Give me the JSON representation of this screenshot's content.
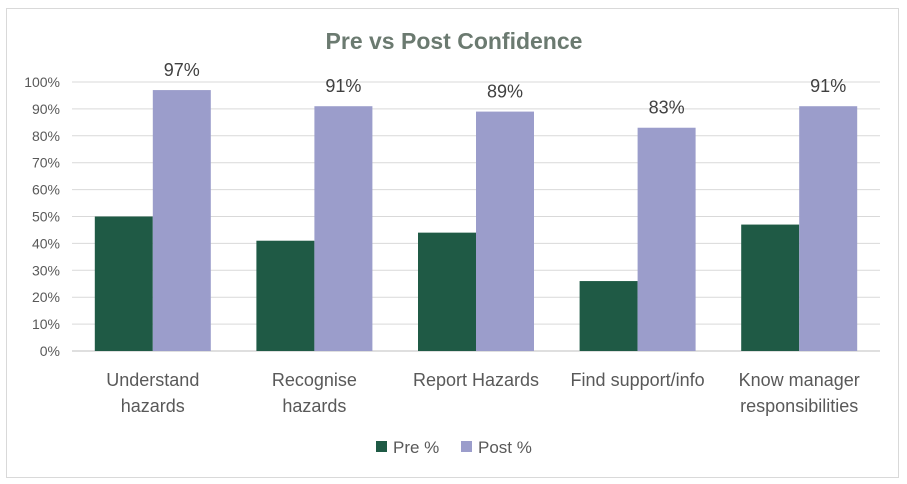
{
  "chart_data": {
    "type": "bar",
    "title": "Pre vs Post Confidence",
    "categories": [
      [
        "Understand",
        "hazards"
      ],
      [
        "Recognise",
        "hazards"
      ],
      [
        "Report Hazards"
      ],
      [
        "Find support/info"
      ],
      [
        "Know manager",
        "responsibilities"
      ]
    ],
    "series": [
      {
        "name": "Pre %",
        "color": "#1f5a45",
        "values": [
          50,
          41,
          44,
          26,
          47
        ],
        "show_labels": false
      },
      {
        "name": "Post %",
        "color": "#9b9dcb",
        "values": [
          97,
          91,
          89,
          83,
          91
        ],
        "show_labels": true
      }
    ],
    "ylim": [
      0,
      100
    ],
    "yticks": [
      "0%",
      "10%",
      "20%",
      "30%",
      "40%",
      "50%",
      "60%",
      "70%",
      "80%",
      "90%",
      "100%"
    ],
    "grid": true,
    "legend": "bottom"
  }
}
